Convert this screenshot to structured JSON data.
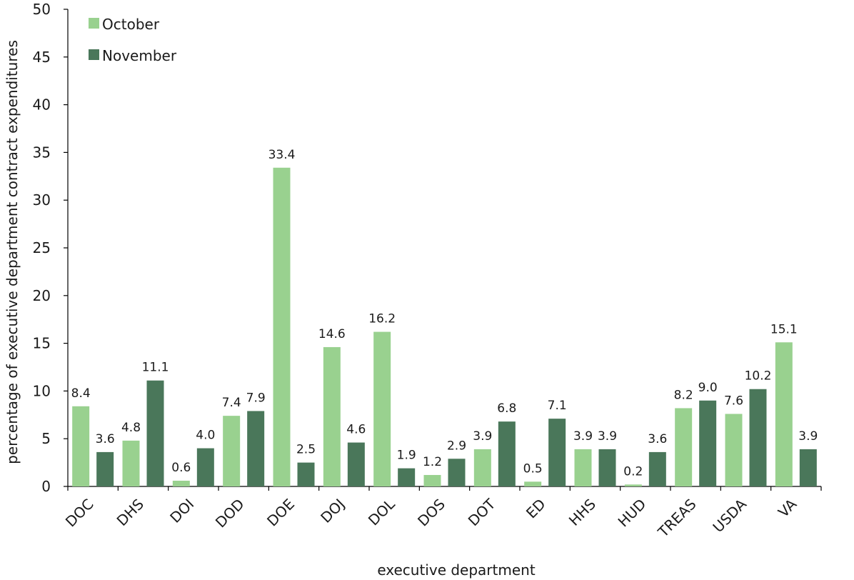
{
  "chart_data": {
    "type": "bar",
    "categories": [
      "DOC",
      "DHS",
      "DOI",
      "DOD",
      "DOE",
      "DOJ",
      "DOL",
      "DOS",
      "DOT",
      "ED",
      "HHS",
      "HUD",
      "TREAS",
      "USDA",
      "VA"
    ],
    "series": [
      {
        "name": "October",
        "color": "#99d18f",
        "values": [
          8.4,
          4.8,
          0.6,
          7.4,
          33.4,
          14.6,
          16.2,
          1.2,
          3.9,
          0.5,
          3.9,
          0.2,
          8.2,
          7.6,
          15.1
        ],
        "labels": [
          "8.4",
          "4.8",
          "0.6",
          "7.4",
          "33.4",
          "14.6",
          "16.2",
          "1.2",
          "3.9",
          "0.5",
          "3.9",
          "0.2",
          "8.2",
          "7.6",
          "15.1"
        ]
      },
      {
        "name": "November",
        "color": "#4a775a",
        "values": [
          3.6,
          11.1,
          4.0,
          7.9,
          2.5,
          4.6,
          1.9,
          2.9,
          6.8,
          7.1,
          3.9,
          3.6,
          9.0,
          10.2,
          3.9
        ],
        "labels": [
          "3.6",
          "11.1",
          "4.0",
          "7.9",
          "2.5",
          "4.6",
          "1.9",
          "2.9",
          "6.8",
          "7.1",
          "3.9",
          "3.6",
          "9.0",
          "10.2",
          "3.9"
        ]
      }
    ],
    "xlabel": "executive department",
    "ylabel": "percentage of executive department contract expenditures",
    "ylim": [
      0,
      50
    ],
    "yticks": [
      "0",
      "5",
      "10",
      "15",
      "20",
      "25",
      "30",
      "35",
      "40",
      "45",
      "50"
    ],
    "grid": false,
    "legend_position": "top-left"
  }
}
